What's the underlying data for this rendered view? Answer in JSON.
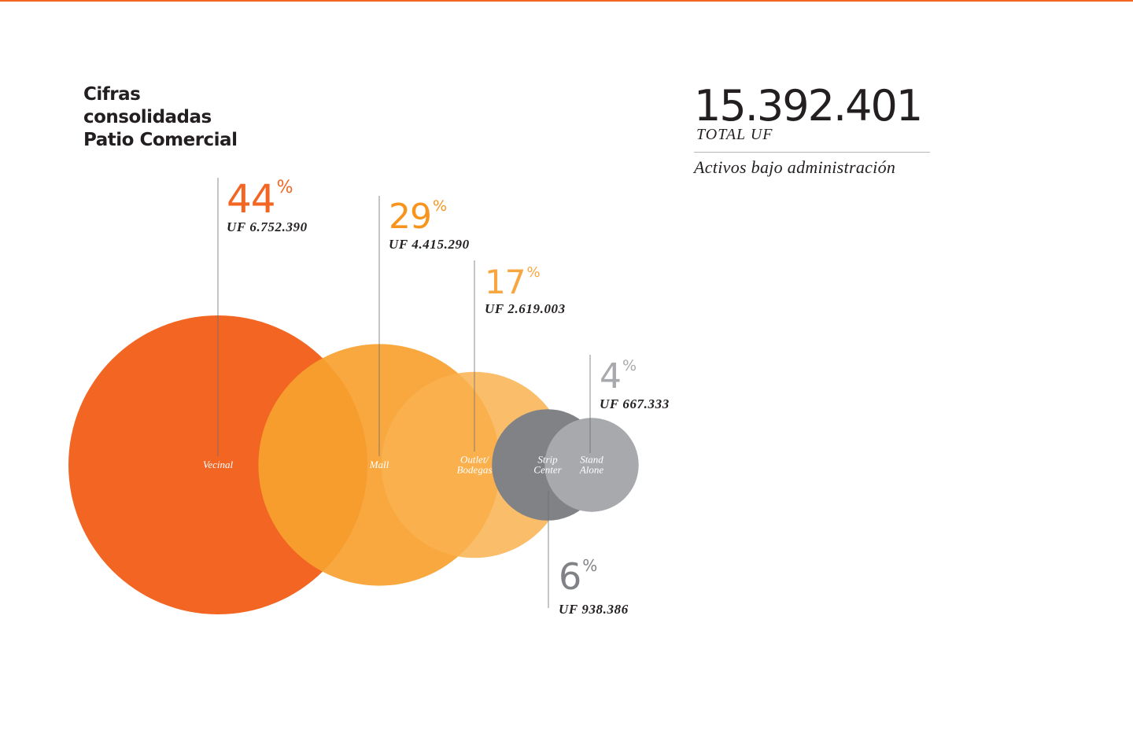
{
  "heading": {
    "lines": [
      "Cifras",
      "consolidadas",
      "Patio Comercial"
    ]
  },
  "total": {
    "value": "15.392.401",
    "unit": "TOTAL UF",
    "caption": "Activos bajo administración"
  },
  "chart_data": {
    "type": "bubble",
    "percent_symbol": "%",
    "series": [
      {
        "name": "Vecinal",
        "label_lines": [
          "Vecinal"
        ],
        "percent": "44",
        "amount": "UF 6.752.390",
        "value": 6752390,
        "share": 44,
        "color": "#f26522",
        "percent_color": "#f26522"
      },
      {
        "name": "Mall",
        "label_lines": [
          "Mall"
        ],
        "percent": "29",
        "amount": "UF 4.415.290",
        "value": 4415290,
        "share": 29,
        "color": "#f7a12f",
        "percent_color": "#f7941d"
      },
      {
        "name": "Outlet/ Bodegas",
        "label_lines": [
          "Outlet/",
          "Bodegas"
        ],
        "percent": "17",
        "amount": "UF 2.619.003",
        "value": 2619003,
        "share": 17,
        "color": "#f9b150",
        "percent_color": "#f8a640"
      },
      {
        "name": "Strip Center",
        "label_lines": [
          "Strip",
          "Center"
        ],
        "percent": "6",
        "amount": "UF 938.386",
        "value": 938386,
        "share": 6,
        "color": "#808285",
        "percent_color": "#808285"
      },
      {
        "name": "Stand Alone",
        "label_lines": [
          "Stand",
          "Alone"
        ],
        "percent": "4",
        "amount": "UF 667.333",
        "value": 667333,
        "share": 4,
        "color": "#a7a9ac",
        "percent_color": "#a7a9ac"
      }
    ]
  }
}
